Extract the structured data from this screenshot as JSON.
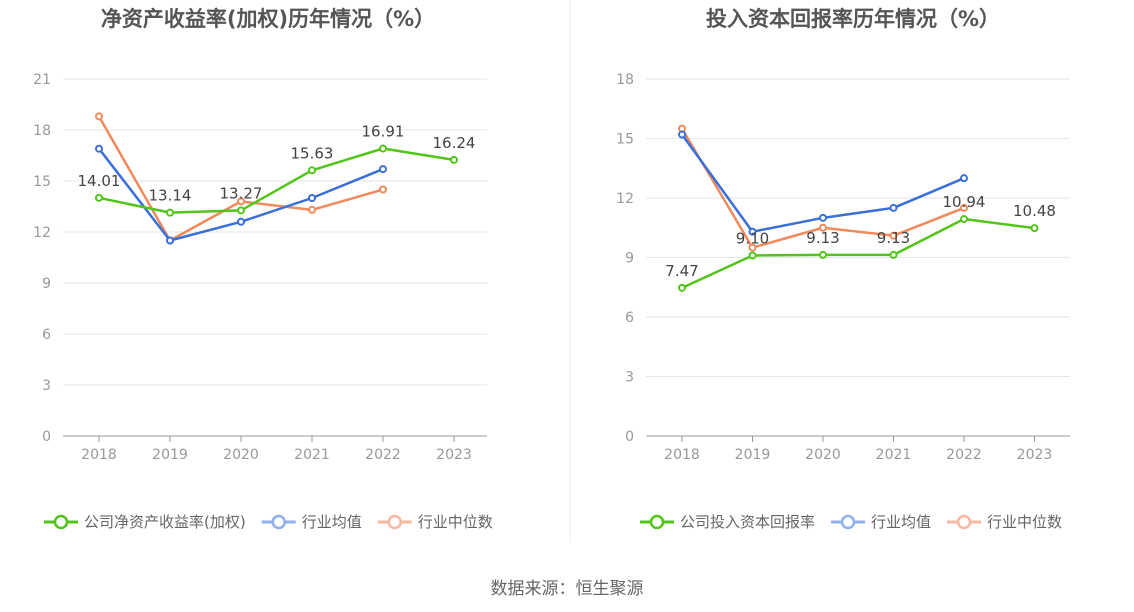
{
  "source_text": "数据来源：恒生聚源",
  "colors": {
    "company": "#52c41a",
    "industry_avg": "#3a6fd8",
    "industry_median": "#f08a5d",
    "legend_avg": "#8fb0ee",
    "legend_median": "#f7b8a0",
    "grid": "#e6e6ee",
    "axis": "#999999",
    "tick_text": "#999999",
    "title_text": "#555555",
    "label_text": "#444444"
  },
  "chart_data": [
    {
      "type": "line",
      "title": "净资产收益率(加权)历年情况（%）",
      "x": [
        "2018",
        "2019",
        "2020",
        "2021",
        "2022",
        "2023"
      ],
      "ylim": [
        0,
        21
      ],
      "yticks": [
        "0",
        "3",
        "6",
        "9",
        "12",
        "15",
        "18",
        "21"
      ],
      "grid": true,
      "legend_position": "bottom",
      "series": [
        {
          "name": "公司净资产收益率(加权)",
          "key": "company",
          "values": [
            14.01,
            13.14,
            13.27,
            15.63,
            16.91,
            16.24
          ],
          "labels": [
            "14.01",
            "13.14",
            "13.27",
            "15.63",
            "16.91",
            "16.24"
          ]
        },
        {
          "name": "行业均值",
          "key": "industry_avg",
          "values": [
            16.9,
            11.5,
            12.6,
            14.0,
            15.7,
            null
          ]
        },
        {
          "name": "行业中位数",
          "key": "industry_median",
          "values": [
            18.8,
            11.5,
            13.8,
            13.3,
            14.5,
            null
          ]
        }
      ]
    },
    {
      "type": "line",
      "title": "投入资本回报率历年情况（%）",
      "x": [
        "2018",
        "2019",
        "2020",
        "2021",
        "2022",
        "2023"
      ],
      "ylim": [
        0,
        18
      ],
      "yticks": [
        "0",
        "3",
        "6",
        "9",
        "12",
        "15",
        "18"
      ],
      "grid": true,
      "legend_position": "bottom",
      "series": [
        {
          "name": "公司投入资本回报率",
          "key": "company",
          "values": [
            7.47,
            9.1,
            9.13,
            9.13,
            10.94,
            10.48
          ],
          "labels": [
            "7.47",
            "9.10",
            "9.13",
            "9.13",
            "10.94",
            "10.48"
          ]
        },
        {
          "name": "行业均值",
          "key": "industry_avg",
          "values": [
            15.2,
            10.3,
            11.0,
            11.5,
            13.0,
            null
          ]
        },
        {
          "name": "行业中位数",
          "key": "industry_median",
          "values": [
            15.5,
            9.5,
            10.5,
            10.1,
            11.5,
            null
          ]
        }
      ]
    }
  ]
}
